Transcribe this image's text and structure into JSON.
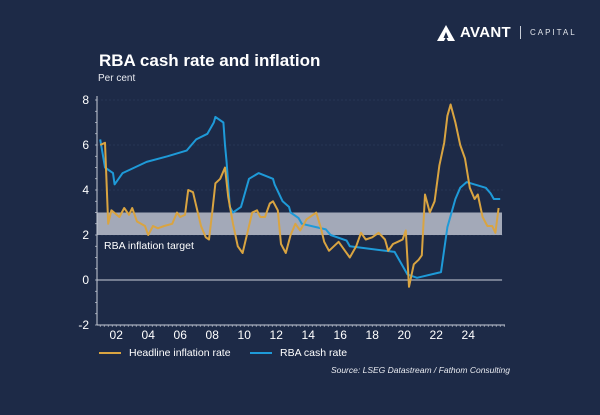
{
  "brand": {
    "name": "AVANT",
    "sub": "CAPITAL"
  },
  "chart_data": {
    "type": "line",
    "title": "RBA cash rate and inflation",
    "ylabel": "Per cent",
    "xlabel": "",
    "ylim": [
      -2,
      8
    ],
    "xlim": [
      2000.8,
      2026.3
    ],
    "yticks": [
      8,
      6,
      4,
      2,
      0,
      -2
    ],
    "xticks": [
      {
        "year": 2002,
        "label": "02"
      },
      {
        "year": 2004,
        "label": "04"
      },
      {
        "year": 2006,
        "label": "06"
      },
      {
        "year": 2008,
        "label": "08"
      },
      {
        "year": 2010,
        "label": "10"
      },
      {
        "year": 2012,
        "label": "12"
      },
      {
        "year": 2014,
        "label": "14"
      },
      {
        "year": 2016,
        "label": "16"
      },
      {
        "year": 2018,
        "label": "18"
      },
      {
        "year": 2020,
        "label": "20"
      },
      {
        "year": 2022,
        "label": "22"
      },
      {
        "year": 2024,
        "label": "24"
      }
    ],
    "band": {
      "label": "RBA inflation target",
      "from": 2,
      "to": 3,
      "color": "#a3a9b8"
    },
    "series": [
      {
        "name": "Headline inflation rate",
        "color": "#d9a441",
        "x": [
          2001.0,
          2001.3,
          2001.5,
          2001.7,
          2002.2,
          2002.5,
          2002.8,
          2003.0,
          2003.3,
          2003.8,
          2004.0,
          2004.3,
          2004.6,
          2005.0,
          2005.5,
          2005.8,
          2006.0,
          2006.3,
          2006.5,
          2006.8,
          2007.0,
          2007.3,
          2007.6,
          2007.8,
          2008.0,
          2008.2,
          2008.5,
          2008.8,
          2009.0,
          2009.3,
          2009.6,
          2009.9,
          2010.2,
          2010.5,
          2010.8,
          2011.0,
          2011.3,
          2011.6,
          2011.8,
          2012.1,
          2012.3,
          2012.6,
          2012.9,
          2013.2,
          2013.5,
          2013.9,
          2014.3,
          2014.5,
          2014.8,
          2015.0,
          2015.3,
          2015.6,
          2015.9,
          2016.3,
          2016.6,
          2017.0,
          2017.3,
          2017.6,
          2018.0,
          2018.4,
          2018.8,
          2019.0,
          2019.3,
          2019.6,
          2019.9,
          2020.1,
          2020.3,
          2020.6,
          2020.9,
          2021.1,
          2021.3,
          2021.6,
          2021.9,
          2022.2,
          2022.5,
          2022.7,
          2022.9,
          2023.2,
          2023.5,
          2023.8,
          2024.1,
          2024.4,
          2024.6,
          2024.9,
          2025.2,
          2025.5,
          2025.7,
          2025.9
        ],
        "values": [
          6.0,
          6.1,
          2.5,
          3.1,
          2.8,
          3.2,
          2.9,
          3.2,
          2.6,
          2.4,
          2.0,
          2.4,
          2.3,
          2.4,
          2.5,
          3.0,
          2.8,
          2.9,
          4.0,
          3.9,
          3.3,
          2.4,
          1.9,
          1.8,
          3.0,
          4.3,
          4.5,
          5.0,
          3.7,
          2.5,
          1.5,
          1.2,
          2.1,
          3.0,
          3.1,
          2.8,
          2.8,
          3.4,
          3.5,
          3.1,
          1.6,
          1.2,
          2.0,
          2.5,
          2.2,
          2.7,
          2.9,
          3.0,
          2.3,
          1.7,
          1.3,
          1.5,
          1.7,
          1.3,
          1.0,
          1.5,
          2.1,
          1.8,
          1.9,
          2.1,
          1.8,
          1.3,
          1.6,
          1.7,
          1.8,
          2.2,
          -0.3,
          0.7,
          0.9,
          1.1,
          3.8,
          3.0,
          3.5,
          5.1,
          6.1,
          7.3,
          7.8,
          7.0,
          6.0,
          5.4,
          4.1,
          3.6,
          3.8,
          2.8,
          2.4,
          2.4,
          2.1,
          3.2
        ]
      },
      {
        "name": "RBA cash rate",
        "color": "#1e9ad8",
        "x": [
          2001.0,
          2001.3,
          2001.8,
          2001.9,
          2002.4,
          2003.9,
          2005.2,
          2006.4,
          2006.7,
          2007.0,
          2007.7,
          2008.1,
          2008.2,
          2008.7,
          2008.8,
          2008.9,
          2009.0,
          2009.1,
          2009.3,
          2009.8,
          2009.9,
          2010.0,
          2010.3,
          2010.9,
          2011.8,
          2011.9,
          2012.4,
          2012.8,
          2012.9,
          2013.4,
          2013.6,
          2015.1,
          2015.4,
          2016.4,
          2016.6,
          2019.4,
          2019.6,
          2019.8,
          2020.2,
          2020.8,
          2022.3,
          2022.5,
          2022.7,
          2022.9,
          2023.0,
          2023.2,
          2023.5,
          2023.9,
          2025.1,
          2025.4,
          2025.6,
          2026.0
        ],
        "values": [
          6.25,
          5.0,
          4.75,
          4.25,
          4.75,
          5.25,
          5.5,
          5.75,
          6.0,
          6.25,
          6.5,
          7.0,
          7.25,
          7.0,
          6.0,
          5.25,
          4.25,
          3.25,
          3.0,
          3.25,
          3.5,
          3.75,
          4.5,
          4.75,
          4.5,
          4.25,
          3.5,
          3.25,
          3.0,
          2.75,
          2.5,
          2.25,
          2.0,
          1.75,
          1.5,
          1.25,
          1.0,
          0.75,
          0.25,
          0.1,
          0.35,
          1.35,
          2.35,
          2.85,
          3.1,
          3.6,
          4.1,
          4.35,
          4.1,
          3.85,
          3.6,
          3.6
        ]
      }
    ],
    "legend": "bottom-left",
    "source": "Source: LSEG Datastream / Fathom Consulting"
  }
}
